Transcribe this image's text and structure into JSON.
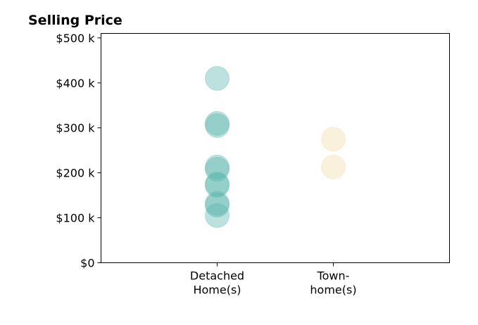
{
  "chart_data": {
    "type": "scatter",
    "title": "Selling Price",
    "xlabel": "",
    "ylabel": "",
    "ylim": [
      0,
      510000
    ],
    "yticks": [
      {
        "value": 0,
        "label": "$0"
      },
      {
        "value": 100000,
        "label": "$100 k"
      },
      {
        "value": 200000,
        "label": "$200 k"
      },
      {
        "value": 300000,
        "label": "$300 k"
      },
      {
        "value": 400000,
        "label": "$400 k"
      },
      {
        "value": 500000,
        "label": "$500 k"
      }
    ],
    "categories": [
      {
        "lines": [
          "Detached",
          "Home(s)"
        ]
      },
      {
        "lines": [
          "Town-",
          "home(s)"
        ]
      }
    ],
    "xlim": [
      -1,
      2
    ],
    "grid": false,
    "series": [
      {
        "category_index": 0,
        "color": "#5ab4ac",
        "values": [
          410000,
          310000,
          305000,
          213000,
          208000,
          175000,
          172000,
          132000,
          128000,
          105000
        ]
      },
      {
        "category_index": 1,
        "color": "#f2dcaa",
        "values": [
          275000,
          213000
        ]
      }
    ]
  }
}
